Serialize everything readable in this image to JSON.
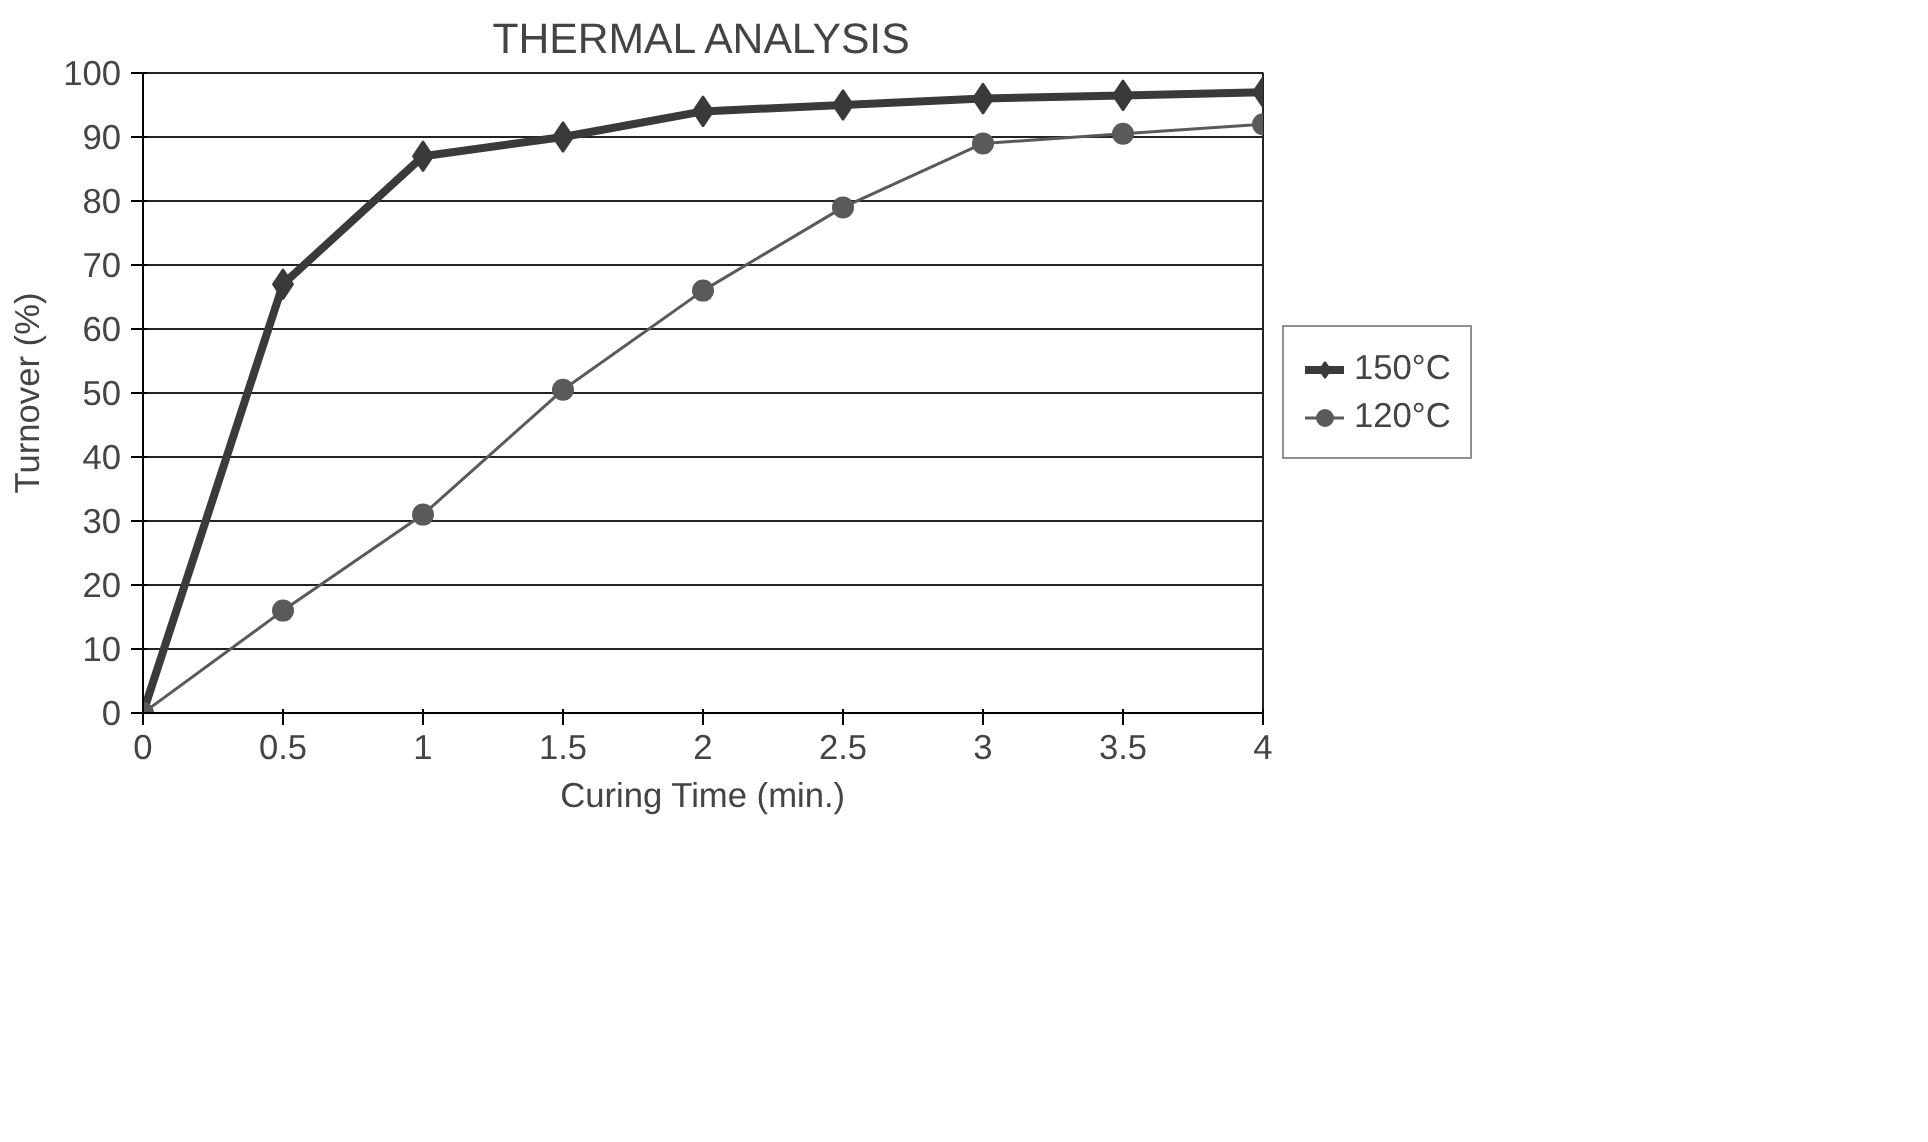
{
  "chart_data": {
    "type": "line",
    "title": "THERMAL ANALYSIS",
    "xlabel": "Curing Time (min.)",
    "ylabel": "Turnover (%)",
    "x": [
      0,
      0.5,
      1,
      1.5,
      2,
      2.5,
      3,
      3.5,
      4
    ],
    "series": [
      {
        "name": "150°C",
        "color": "#3a3a3a",
        "marker": "diamond",
        "values": [
          0,
          67,
          87,
          90,
          94,
          95,
          96,
          96.5,
          97
        ]
      },
      {
        "name": "120°C",
        "color": "#5a5a5a",
        "marker": "circle",
        "values": [
          0,
          16,
          31,
          50.5,
          66,
          79,
          89,
          90.5,
          92
        ]
      }
    ],
    "xlim": [
      0,
      4
    ],
    "xticks": [
      0,
      0.5,
      1,
      1.5,
      2,
      2.5,
      3,
      3.5,
      4
    ],
    "ylim": [
      0,
      100
    ],
    "yticks": [
      0,
      10,
      20,
      30,
      40,
      50,
      60,
      70,
      80,
      90,
      100
    ],
    "grid": "y",
    "legend": "right",
    "line_style": "solid"
  }
}
